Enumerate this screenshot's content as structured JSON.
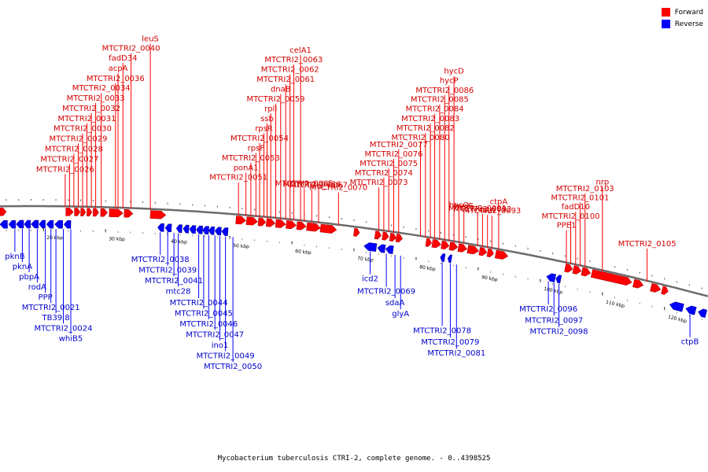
{
  "legend": {
    "forward_label": "Forward",
    "reverse_label": "Reverse",
    "forward_color": "#ff0000",
    "reverse_color": "#0000ff"
  },
  "caption": "Mycobacterium tuberculosis CTRI-2, complete genome. - 0..4398525",
  "axis": {
    "unit": "kbp",
    "ticks": [
      {
        "label": "20 kbp",
        "kbp": 20
      },
      {
        "label": "30 kbp",
        "kbp": 30
      },
      {
        "label": "40 kbp",
        "kbp": 40
      },
      {
        "label": "50 kbp",
        "kbp": 50
      },
      {
        "label": "60 kbp",
        "kbp": 60
      },
      {
        "label": "70 kbp",
        "kbp": 70
      },
      {
        "label": "80 kbp",
        "kbp": 80
      },
      {
        "label": "90 kbp",
        "kbp": 90
      },
      {
        "label": "100 kbp",
        "kbp": 100
      },
      {
        "label": "110 kbp",
        "kbp": 110
      },
      {
        "label": "120 kbp",
        "kbp": 120
      }
    ]
  },
  "forward_genes": [
    {
      "name": "MTCTRI2_0026",
      "kbp": 23.5
    },
    {
      "name": "MTCTRI2_0027",
      "kbp": 24.2
    },
    {
      "name": "MTCTRI2_0028",
      "kbp": 24.9
    },
    {
      "name": "MTCTRI2_0029",
      "kbp": 25.6
    },
    {
      "name": "MTCTRI2_0030",
      "kbp": 26.3
    },
    {
      "name": "MTCTRI2_0031",
      "kbp": 27.0
    },
    {
      "name": "MTCTRI2_0032",
      "kbp": 27.7
    },
    {
      "name": "MTCTRI2_0033",
      "kbp": 28.4
    },
    {
      "name": "MTCTRI2_0034",
      "kbp": 29.3
    },
    {
      "name": "MTCTRI2_0036",
      "kbp": 31.6
    },
    {
      "name": "acpA",
      "kbp": 32.0
    },
    {
      "name": "fadD34",
      "kbp": 32.8
    },
    {
      "name": "MTCTRI2_0040",
      "kbp": 34.1
    },
    {
      "name": "leuS",
      "kbp": 37.2
    },
    {
      "name": "MTCTRI2_0051",
      "kbp": 51.4
    },
    {
      "name": "ponA1",
      "kbp": 52.6
    },
    {
      "name": "MTCTRI2_0053",
      "kbp": 53.4
    },
    {
      "name": "rpsF",
      "kbp": 54.2
    },
    {
      "name": "MTCTRI2_0054",
      "kbp": 54.8
    },
    {
      "name": "rpsR",
      "kbp": 55.5
    },
    {
      "name": "ssb",
      "kbp": 56.0
    },
    {
      "name": "rplI",
      "kbp": 56.6
    },
    {
      "name": "MTCTRI2_0059",
      "kbp": 57.4
    },
    {
      "name": "dnaB",
      "kbp": 58.2
    },
    {
      "name": "MTCTRI2_0061",
      "kbp": 59.0
    },
    {
      "name": "MTCTRI2_0062",
      "kbp": 59.7
    },
    {
      "name": "MTCTRI2_0063",
      "kbp": 60.3
    },
    {
      "name": "celA1",
      "kbp": 61.4
    },
    {
      "name": "MTCTRI2_0065",
      "kbp": 62.0
    },
    {
      "name": "MTCTRI2_0066",
      "kbp": 63.2
    },
    {
      "name": "MTCTRI2_0067",
      "kbp": 64.3
    },
    {
      "name": "MTCTRI2_0070",
      "kbp": 67.5
    },
    {
      "name": "MTCTRI2_0073",
      "kbp": 74.0
    },
    {
      "name": "MTCTRI2_0074",
      "kbp": 74.8
    },
    {
      "name": "MTCTRI2_0075",
      "kbp": 75.6
    },
    {
      "name": "MTCTRI2_0076",
      "kbp": 76.4
    },
    {
      "name": "MTCTRI2_0077",
      "kbp": 77.2
    },
    {
      "name": "MTCTRI2_0080",
      "kbp": 80.7
    },
    {
      "name": "MTCTRI2_0082",
      "kbp": 81.5
    },
    {
      "name": "MTCTRI2_0083",
      "kbp": 82.3
    },
    {
      "name": "MTCTRI2_0084",
      "kbp": 83.0
    },
    {
      "name": "MTCTRI2_0085",
      "kbp": 83.8
    },
    {
      "name": "MTCTRI2_0086",
      "kbp": 84.6
    },
    {
      "name": "hycP",
      "kbp": 85.3
    },
    {
      "name": "hycD",
      "kbp": 86.1
    },
    {
      "name": "hycQ",
      "kbp": 86.9
    },
    {
      "name": "hycE",
      "kbp": 87.7
    },
    {
      "name": "MTCTRI2_0091",
      "kbp": 89.9
    },
    {
      "name": "MTCTRI2_0092",
      "kbp": 90.7
    },
    {
      "name": "mtn",
      "kbp": 91.5
    },
    {
      "name": "MTCTRI2_0093",
      "kbp": 92.2
    },
    {
      "name": "ctpA",
      "kbp": 93.3
    },
    {
      "name": "PPE1",
      "kbp": 104.2
    },
    {
      "name": "MTCTRI2_0100",
      "kbp": 104.9
    },
    {
      "name": "fadD10",
      "kbp": 105.7
    },
    {
      "name": "MTCTRI2_0101",
      "kbp": 106.4
    },
    {
      "name": "MTCTRI2_0103",
      "kbp": 107.2
    },
    {
      "name": "nrp",
      "kbp": 110.0
    },
    {
      "name": "MTCTRI2_0105",
      "kbp": 117.2
    }
  ],
  "reverse_genes": [
    {
      "name": "pknB",
      "kbp": 15.4
    },
    {
      "name": "pknA",
      "kbp": 16.6
    },
    {
      "name": "pbpA",
      "kbp": 17.7
    },
    {
      "name": "rodA",
      "kbp": 19.0
    },
    {
      "name": "PPP",
      "kbp": 20.3
    },
    {
      "name": "MTCTRI2_0021",
      "kbp": 21.2
    },
    {
      "name": "TB39.8",
      "kbp": 22.0
    },
    {
      "name": "MTCTRI2_0024",
      "kbp": 23.2
    },
    {
      "name": "whiB5",
      "kbp": 24.4
    },
    {
      "name": "MTCTRI2_0038",
      "kbp": 38.8
    },
    {
      "name": "MTCTRI2_0039",
      "kbp": 40.0
    },
    {
      "name": "MTCTRI2_0041",
      "kbp": 41.0
    },
    {
      "name": "mtc28",
      "kbp": 41.7
    },
    {
      "name": "MTCTRI2_0044",
      "kbp": 45.0
    },
    {
      "name": "MTCTRI2_0045",
      "kbp": 45.8
    },
    {
      "name": "MTCTRI2_0046",
      "kbp": 46.6
    },
    {
      "name": "MTCTRI2_0047",
      "kbp": 47.6
    },
    {
      "name": "ino1",
      "kbp": 48.4
    },
    {
      "name": "MTCTRI2_0049",
      "kbp": 49.3
    },
    {
      "name": "MTCTRI2_0050",
      "kbp": 50.5
    },
    {
      "name": "icd2",
      "kbp": 72.6
    },
    {
      "name": "MTCTRI2_0069",
      "kbp": 75.2
    },
    {
      "name": "sdaA",
      "kbp": 76.6
    },
    {
      "name": "glyA",
      "kbp": 77.5
    },
    {
      "name": "MTCTRI2_0078",
      "kbp": 84.2
    },
    {
      "name": "MTCTRI2_0079",
      "kbp": 85.5
    },
    {
      "name": "MTCTRI2_0081",
      "kbp": 86.5
    },
    {
      "name": "MTCTRI2_0096",
      "kbp": 101.3
    },
    {
      "name": "MTCTRI2_0097",
      "kbp": 102.2
    },
    {
      "name": "MTCTRI2_0098",
      "kbp": 103.0
    },
    {
      "name": "ctpB",
      "kbp": 124.1
    }
  ]
}
